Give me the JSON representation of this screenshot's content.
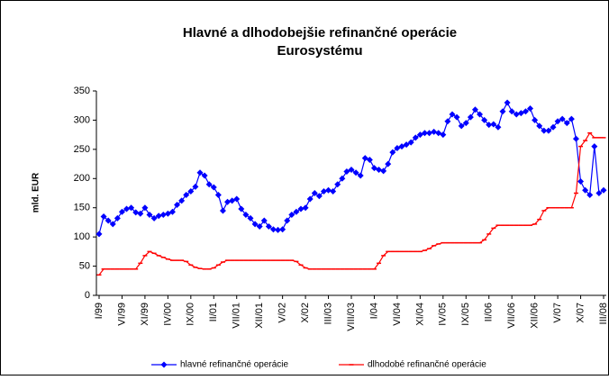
{
  "chart_data": {
    "type": "line",
    "title": [
      "Hlavné a dlhodobejšie refinančné operácie",
      "Eurosystému"
    ],
    "y_label": "mld. EUR",
    "categories": [
      "I/99",
      null,
      null,
      null,
      null,
      "VI/99",
      null,
      null,
      null,
      null,
      "XI/99",
      null,
      null,
      null,
      null,
      "IV/00",
      null,
      null,
      null,
      null,
      "IX/00",
      null,
      null,
      null,
      null,
      "II/01",
      null,
      null,
      null,
      null,
      "VII/01",
      null,
      null,
      null,
      null,
      "XII/01",
      null,
      null,
      null,
      null,
      "V/02",
      null,
      null,
      null,
      null,
      "X/02",
      null,
      null,
      null,
      null,
      "III/03",
      null,
      null,
      null,
      null,
      "VIII/03",
      null,
      null,
      null,
      null,
      "I/04",
      null,
      null,
      null,
      null,
      "VI/04",
      null,
      null,
      null,
      null,
      "XI/04",
      null,
      null,
      null,
      null,
      "IV/05",
      null,
      null,
      null,
      null,
      "IX/05",
      null,
      null,
      null,
      null,
      "II/06",
      null,
      null,
      null,
      null,
      "VII/06",
      null,
      null,
      null,
      null,
      "XII/06",
      null,
      null,
      null,
      null,
      "V/07",
      null,
      null,
      null,
      null,
      "X/07",
      null,
      null,
      null,
      null,
      "III/08"
    ],
    "series": [
      {
        "name": "hlavné refinančné operácie",
        "color": "#0000ff",
        "marker": "diamond",
        "values": [
          105,
          135,
          128,
          122,
          132,
          143,
          148,
          150,
          142,
          140,
          150,
          138,
          132,
          136,
          138,
          140,
          143,
          155,
          162,
          172,
          178,
          186,
          210,
          205,
          190,
          185,
          172,
          145,
          160,
          162,
          165,
          148,
          138,
          132,
          122,
          118,
          128,
          118,
          113,
          112,
          113,
          128,
          138,
          143,
          148,
          150,
          165,
          175,
          170,
          178,
          180,
          178,
          190,
          200,
          212,
          215,
          210,
          205,
          235,
          232,
          218,
          215,
          213,
          225,
          245,
          252,
          255,
          258,
          262,
          270,
          275,
          278,
          278,
          280,
          278,
          275,
          298,
          310,
          305,
          290,
          295,
          305,
          318,
          310,
          300,
          292,
          293,
          288,
          315,
          330,
          315,
          310,
          312,
          315,
          320,
          300,
          290,
          282,
          282,
          288,
          298,
          302,
          295,
          302,
          268,
          195,
          180,
          172,
          255,
          175,
          180
        ]
      },
      {
        "name": "dlhodobé refinančné operácie",
        "color": "#ff0000",
        "marker": "dash",
        "values": [
          35,
          45,
          45,
          45,
          45,
          45,
          45,
          45,
          45,
          55,
          68,
          75,
          72,
          68,
          65,
          62,
          60,
          60,
          60,
          58,
          52,
          48,
          46,
          45,
          45,
          47,
          52,
          57,
          60,
          60,
          60,
          60,
          60,
          60,
          60,
          60,
          60,
          60,
          60,
          60,
          60,
          60,
          60,
          58,
          52,
          47,
          45,
          45,
          45,
          45,
          45,
          45,
          45,
          45,
          45,
          45,
          45,
          45,
          45,
          45,
          45,
          55,
          68,
          75,
          75,
          75,
          75,
          75,
          75,
          75,
          75,
          77,
          80,
          85,
          88,
          90,
          90,
          90,
          90,
          90,
          90,
          90,
          90,
          90,
          95,
          105,
          115,
          120,
          120,
          120,
          120,
          120,
          120,
          120,
          120,
          122,
          130,
          145,
          150,
          150,
          150,
          150,
          150,
          150,
          175,
          255,
          265,
          278,
          270,
          270,
          270
        ]
      }
    ],
    "ylim": [
      0,
      350
    ],
    "yticks": [
      0,
      50,
      100,
      150,
      200,
      250,
      300,
      350
    ],
    "grid": false,
    "legend": "bottom"
  }
}
